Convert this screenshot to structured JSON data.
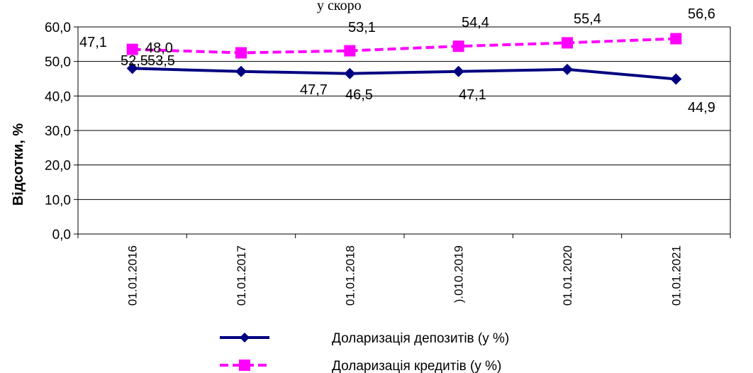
{
  "chart_data": {
    "type": "line",
    "title_fragment": "у скоро",
    "ylabel": "Відсотки, %",
    "ylim": [
      0,
      60
    ],
    "yticks": [
      "0,0",
      "10,0",
      "20,0",
      "30,0",
      "40,0",
      "50,0",
      "60,0"
    ],
    "categories": [
      "01.01.2016",
      "01.01.2017",
      "01.01.2018",
      ").010.2019",
      "01.01.2020",
      "01.01.2021"
    ],
    "grid": true,
    "legend_position": "bottom",
    "series": [
      {
        "name": "Доларизація депозитів (у %)",
        "values": [
          48.0,
          47.1,
          46.5,
          47.1,
          47.7,
          44.9
        ],
        "color": "#000080",
        "marker": "diamond",
        "dash": "solid"
      },
      {
        "name": "Доларизація кредитів (у %)",
        "values": [
          53.5,
          52.5,
          53.1,
          54.4,
          55.4,
          56.6
        ],
        "color": "#ff00ff",
        "marker": "square",
        "dash": "dashed"
      }
    ],
    "data_labels": [
      "47,1",
      "52,5",
      "53,5",
      "48,0",
      "53,1",
      "54,4",
      "55,4",
      "56,6",
      "47,7",
      "46,5",
      "47,1",
      "44,9"
    ]
  }
}
